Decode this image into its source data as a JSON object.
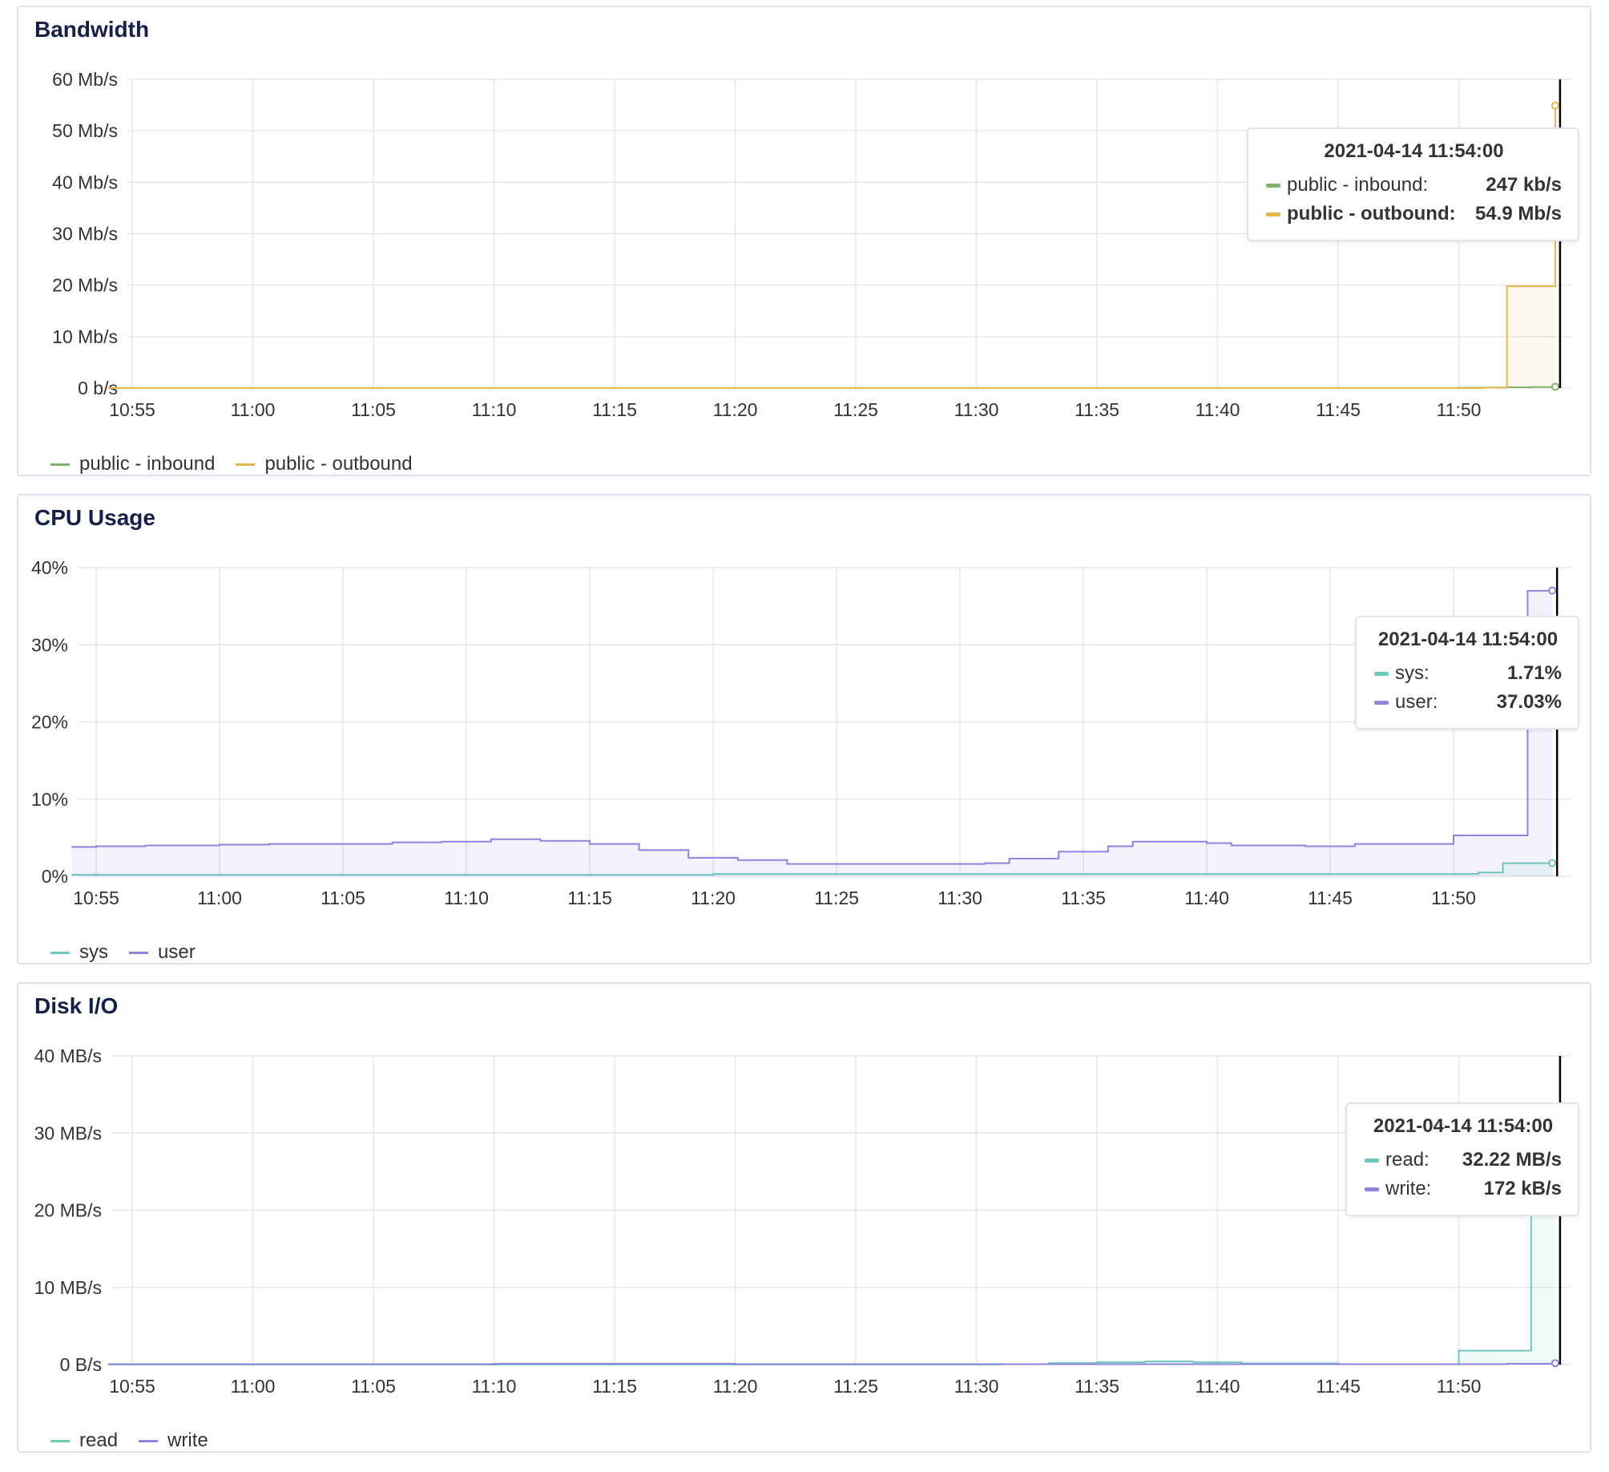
{
  "panels": [
    {
      "title": "Bandwidth",
      "y_ticks": [
        "60 Mb/s",
        "50 Mb/s",
        "40 Mb/s",
        "30 Mb/s",
        "20 Mb/s",
        "10 Mb/s",
        "0 b/s"
      ],
      "x_ticks": [
        "10:55",
        "11:00",
        "11:05",
        "11:10",
        "11:15",
        "11:20",
        "11:25",
        "11:30",
        "11:35",
        "11:40",
        "11:45",
        "11:50"
      ],
      "legend": [
        {
          "label": "public - inbound",
          "color": "#7eb26d"
        },
        {
          "label": "public - outbound",
          "color": "#e5b74e"
        }
      ],
      "tooltip": {
        "title": "2021-04-14 11:54:00",
        "rows": [
          {
            "label": "public - inbound:",
            "value": "247 kb/s",
            "color": "#7eb26d"
          },
          {
            "label": "public - outbound:",
            "value": "54.9 Mb/s",
            "color": "#e5b74e"
          }
        ]
      }
    },
    {
      "title": "CPU Usage",
      "y_ticks": [
        "40%",
        "30%",
        "20%",
        "10%",
        "0%"
      ],
      "x_ticks": [
        "10:55",
        "11:00",
        "11:05",
        "11:10",
        "11:15",
        "11:20",
        "11:25",
        "11:30",
        "11:35",
        "11:40",
        "11:45",
        "11:50"
      ],
      "legend": [
        {
          "label": "sys",
          "color": "#6ccabd"
        },
        {
          "label": "user",
          "color": "#8d84e0"
        }
      ],
      "tooltip": {
        "title": "2021-04-14 11:54:00",
        "rows": [
          {
            "label": "sys:",
            "value": "1.71%",
            "color": "#6ccabd"
          },
          {
            "label": "user:",
            "value": "37.03%",
            "color": "#8d84e0"
          }
        ]
      }
    },
    {
      "title": "Disk I/O",
      "y_ticks": [
        "40 MB/s",
        "30 MB/s",
        "20 MB/s",
        "10 MB/s",
        "0 B/s"
      ],
      "x_ticks": [
        "10:55",
        "11:00",
        "11:05",
        "11:10",
        "11:15",
        "11:20",
        "11:25",
        "11:30",
        "11:35",
        "11:40",
        "11:45",
        "11:50"
      ],
      "legend": [
        {
          "label": "read",
          "color": "#6ccabd"
        },
        {
          "label": "write",
          "color": "#8d84e0"
        }
      ],
      "tooltip": {
        "title": "2021-04-14 11:54:00",
        "rows": [
          {
            "label": "read:",
            "value": "32.22 MB/s",
            "color": "#6ccabd"
          },
          {
            "label": "write:",
            "value": "172 kB/s",
            "color": "#8d84e0"
          }
        ]
      }
    }
  ],
  "chart_data": [
    {
      "type": "area",
      "title": "Bandwidth",
      "x_unit": "time",
      "ylim": [
        0,
        60
      ],
      "y_unit": "Mb/s",
      "series": [
        {
          "name": "public - inbound",
          "color": "#7eb26d",
          "points": [
            [
              "10:54",
              0
            ],
            [
              "11:50",
              0.05
            ],
            [
              "11:51",
              0.1
            ],
            [
              "11:52",
              0.15
            ],
            [
              "11:53",
              0.2
            ],
            [
              "11:54",
              0.247
            ]
          ]
        },
        {
          "name": "public - outbound",
          "color": "#e5b74e",
          "points": [
            [
              "10:54",
              0
            ],
            [
              "11:51",
              0.1
            ],
            [
              "11:52",
              19.8
            ],
            [
              "11:53",
              19.8
            ],
            [
              "11:54",
              54.9
            ]
          ]
        }
      ],
      "grid": true,
      "legend_position": "bottom-left"
    },
    {
      "type": "area",
      "title": "CPU Usage",
      "x_unit": "time",
      "ylim": [
        0,
        40
      ],
      "y_unit": "%",
      "series": [
        {
          "name": "sys",
          "color": "#6ccabd",
          "points": [
            [
              "10:54",
              0.2
            ],
            [
              "11:20",
              0.3
            ],
            [
              "11:30",
              0.3
            ],
            [
              "11:50",
              0.3
            ],
            [
              "11:51",
              0.5
            ],
            [
              "11:52",
              1.7
            ],
            [
              "11:54",
              1.71
            ]
          ]
        },
        {
          "name": "user",
          "color": "#8d84e0",
          "points": [
            [
              "10:54",
              3.8
            ],
            [
              "10:55",
              3.9
            ],
            [
              "10:57",
              4.0
            ],
            [
              "11:00",
              4.1
            ],
            [
              "11:02",
              4.2
            ],
            [
              "11:05",
              4.2
            ],
            [
              "11:07",
              4.4
            ],
            [
              "11:09",
              4.5
            ],
            [
              "11:11",
              4.8
            ],
            [
              "11:13",
              4.6
            ],
            [
              "11:15",
              4.2
            ],
            [
              "11:17",
              3.4
            ],
            [
              "11:19",
              2.4
            ],
            [
              "11:21",
              2.1
            ],
            [
              "11:23",
              1.6
            ],
            [
              "11:25",
              1.6
            ],
            [
              "11:28",
              1.6
            ],
            [
              "11:31",
              1.7
            ],
            [
              "11:32",
              2.3
            ],
            [
              "11:34",
              3.2
            ],
            [
              "11:36",
              3.9
            ],
            [
              "11:37",
              4.5
            ],
            [
              "11:38",
              4.5
            ],
            [
              "11:40",
              4.3
            ],
            [
              "11:41",
              4.0
            ],
            [
              "11:44",
              3.9
            ],
            [
              "11:46",
              4.2
            ],
            [
              "11:49",
              4.2
            ],
            [
              "11:50",
              5.3
            ],
            [
              "11:52",
              5.3
            ],
            [
              "11:53",
              37.0
            ],
            [
              "11:54",
              37.03
            ]
          ]
        }
      ],
      "grid": true,
      "legend_position": "bottom-left"
    },
    {
      "type": "area",
      "title": "Disk I/O",
      "x_unit": "time",
      "ylim": [
        0,
        40
      ],
      "y_unit": "MB/s",
      "series": [
        {
          "name": "read",
          "color": "#6ccabd",
          "points": [
            [
              "10:54",
              0
            ],
            [
              "11:31",
              0.05
            ],
            [
              "11:33",
              0.2
            ],
            [
              "11:35",
              0.3
            ],
            [
              "11:37",
              0.4
            ],
            [
              "11:39",
              0.3
            ],
            [
              "11:41",
              0.15
            ],
            [
              "11:45",
              0.05
            ],
            [
              "11:49",
              0.05
            ],
            [
              "11:50",
              1.8
            ],
            [
              "11:51",
              1.8
            ],
            [
              "11:52",
              1.8
            ],
            [
              "11:53",
              32.2
            ],
            [
              "11:54",
              32.22
            ]
          ]
        },
        {
          "name": "write",
          "color": "#8d84e0",
          "points": [
            [
              "10:54",
              0.05
            ],
            [
              "11:10",
              0.1
            ],
            [
              "11:20",
              0.05
            ],
            [
              "11:52",
              0.1
            ],
            [
              "11:54",
              0.172
            ]
          ]
        }
      ],
      "grid": true,
      "legend_position": "bottom-left"
    }
  ]
}
